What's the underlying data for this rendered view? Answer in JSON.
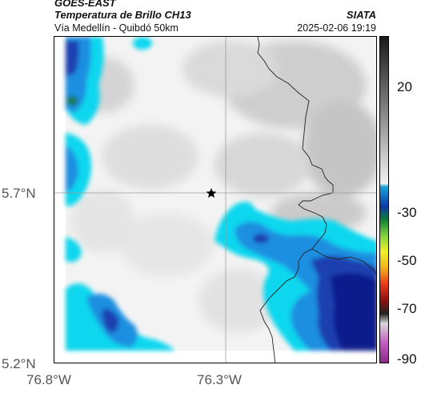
{
  "header": {
    "satellite": "GOES-EAST",
    "product": "Temperatura de Brillo CH13",
    "region": "Vía Medellín - Quibdó 50km",
    "agency": "SIATA",
    "timestamp": "2025-02-06 19:19"
  },
  "map": {
    "lat_labels": [
      "5.7°N",
      "5.2°N"
    ],
    "lon_labels": [
      "76.8°W",
      "76.3°W"
    ],
    "marker": "star-icon",
    "colors": {
      "cold_tops": "#0b1a8c",
      "mid_cloud": "#1f6fd0",
      "warm_cloud": "#11d7ee",
      "clear": "#f5f5f5"
    }
  },
  "colorbar": {
    "labels": [
      "20",
      "-30",
      "-50",
      "-70",
      "-90"
    ]
  }
}
